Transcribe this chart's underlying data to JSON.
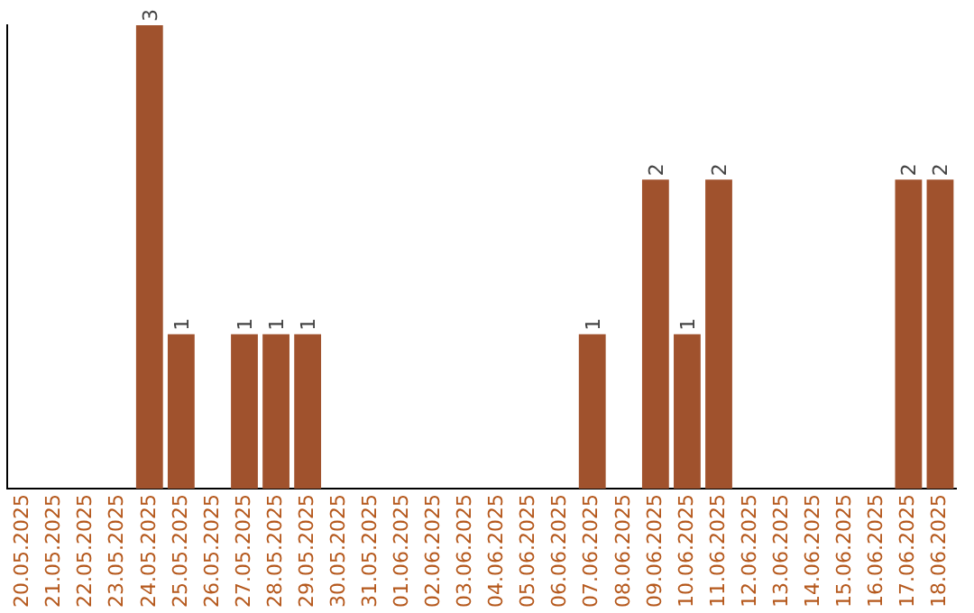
{
  "chart_data": {
    "type": "bar",
    "categories": [
      "20.05.2025",
      "21.05.2025",
      "22.05.2025",
      "23.05.2025",
      "24.05.2025",
      "25.05.2025",
      "26.05.2025",
      "27.05.2025",
      "28.05.2025",
      "29.05.2025",
      "30.05.2025",
      "31.05.2025",
      "01.06.2025",
      "02.06.2025",
      "03.06.2025",
      "04.06.2025",
      "05.06.2025",
      "06.06.2025",
      "07.06.2025",
      "08.06.2025",
      "09.06.2025",
      "10.06.2025",
      "11.06.2025",
      "12.06.2025",
      "13.06.2025",
      "14.06.2025",
      "15.06.2025",
      "16.06.2025",
      "17.06.2025",
      "18.06.2025"
    ],
    "values": [
      0,
      0,
      0,
      0,
      3,
      1,
      0,
      1,
      1,
      1,
      0,
      0,
      0,
      0,
      0,
      0,
      0,
      0,
      1,
      0,
      2,
      1,
      2,
      0,
      0,
      0,
      0,
      0,
      2,
      2
    ],
    "value_labels": [
      null,
      null,
      null,
      null,
      "3",
      "1",
      null,
      "1",
      "1",
      "1",
      null,
      null,
      null,
      null,
      null,
      null,
      null,
      null,
      "1",
      null,
      "2",
      "1",
      "2",
      null,
      null,
      null,
      null,
      null,
      "2",
      "2"
    ],
    "color": "#a0522d",
    "grid": false,
    "legend": false,
    "tick_labels": "x"
  }
}
